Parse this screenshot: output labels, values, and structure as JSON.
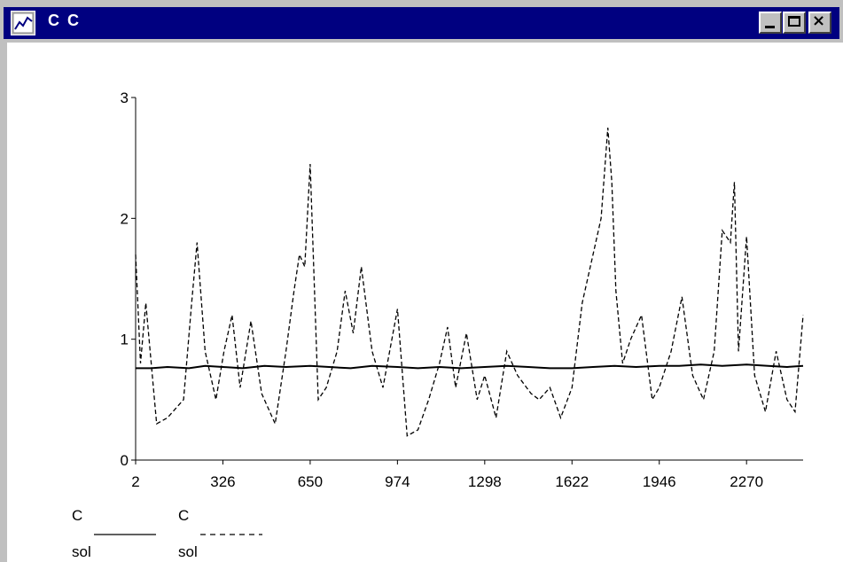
{
  "window": {
    "title": "C C",
    "minimize_label": "_",
    "maximize_label": "□",
    "close_label": "×"
  },
  "chart_data": {
    "type": "line",
    "title": "",
    "xlabel": "",
    "ylabel": "",
    "ylim": [
      0,
      3
    ],
    "xlim": [
      2,
      2480
    ],
    "y_ticks": [
      0,
      1,
      2,
      3
    ],
    "x_ticks": [
      2,
      326,
      650,
      974,
      1298,
      1622,
      1946,
      2270
    ],
    "grid": false,
    "legend": {
      "placement": "bottom-left",
      "entries": [
        {
          "name": "C",
          "sub": "sol",
          "style": "solid"
        },
        {
          "name": "C",
          "sub": "sol",
          "style": "dashed"
        }
      ]
    },
    "series": [
      {
        "name": "C sol (solid)",
        "style": "solid",
        "x": [
          2,
          60,
          120,
          200,
          260,
          326,
          400,
          480,
          560,
          650,
          720,
          800,
          880,
          974,
          1050,
          1130,
          1210,
          1298,
          1380,
          1460,
          1540,
          1622,
          1700,
          1780,
          1860,
          1946,
          2020,
          2100,
          2180,
          2270,
          2350,
          2420,
          2480
        ],
        "y": [
          0.76,
          0.76,
          0.77,
          0.76,
          0.78,
          0.77,
          0.76,
          0.78,
          0.77,
          0.78,
          0.77,
          0.76,
          0.78,
          0.77,
          0.76,
          0.77,
          0.76,
          0.77,
          0.78,
          0.77,
          0.76,
          0.76,
          0.77,
          0.78,
          0.77,
          0.78,
          0.78,
          0.79,
          0.78,
          0.79,
          0.78,
          0.77,
          0.78
        ]
      },
      {
        "name": "C sol (dashed)",
        "style": "dashed",
        "x": [
          2,
          20,
          40,
          80,
          120,
          180,
          210,
          230,
          260,
          300,
          330,
          360,
          390,
          430,
          470,
          520,
          560,
          590,
          610,
          630,
          650,
          680,
          710,
          750,
          780,
          810,
          840,
          880,
          920,
          974,
          1010,
          1050,
          1090,
          1130,
          1160,
          1190,
          1230,
          1270,
          1298,
          1340,
          1380,
          1420,
          1470,
          1500,
          1540,
          1580,
          1622,
          1660,
          1700,
          1730,
          1755,
          1770,
          1785,
          1810,
          1840,
          1880,
          1920,
          1946,
          1990,
          2030,
          2070,
          2110,
          2150,
          2180,
          2210,
          2225,
          2240,
          2270,
          2300,
          2340,
          2380,
          2420,
          2450,
          2480
        ],
        "y": [
          1.7,
          0.8,
          1.3,
          0.3,
          0.35,
          0.5,
          1.3,
          1.8,
          0.9,
          0.5,
          0.9,
          1.2,
          0.6,
          1.15,
          0.55,
          0.3,
          0.9,
          1.4,
          1.7,
          1.6,
          2.45,
          0.5,
          0.6,
          0.9,
          1.4,
          1.05,
          1.6,
          0.9,
          0.6,
          1.25,
          0.2,
          0.25,
          0.5,
          0.8,
          1.1,
          0.6,
          1.05,
          0.5,
          0.7,
          0.35,
          0.9,
          0.7,
          0.55,
          0.5,
          0.6,
          0.35,
          0.6,
          1.3,
          1.7,
          2.0,
          2.75,
          2.3,
          1.4,
          0.8,
          1.0,
          1.2,
          0.5,
          0.6,
          0.9,
          1.35,
          0.7,
          0.5,
          0.9,
          1.9,
          1.8,
          2.3,
          0.9,
          1.85,
          0.7,
          0.4,
          0.9,
          0.5,
          0.4,
          1.2
        ]
      }
    ]
  }
}
